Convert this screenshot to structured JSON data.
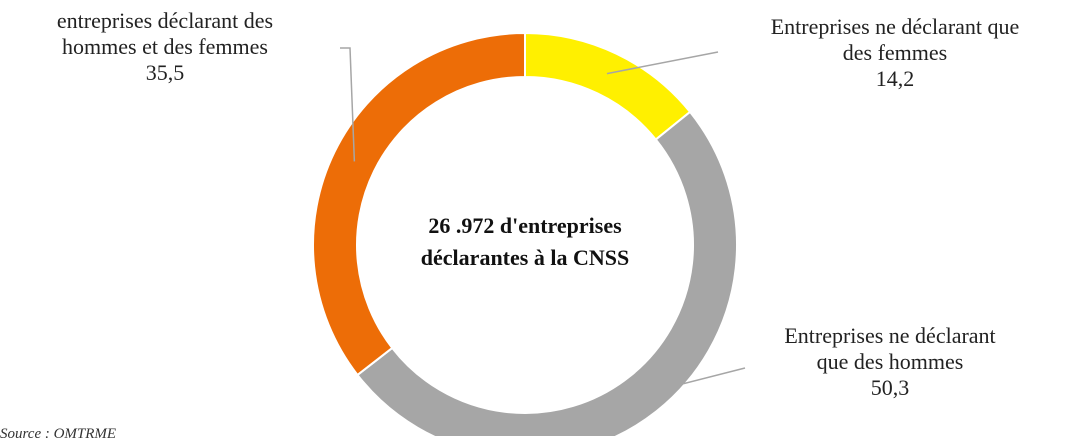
{
  "chart_data": {
    "type": "pie",
    "variant": "donut",
    "center_text": [
      "26 .972 d'entreprises",
      "déclarantes à la CNSS"
    ],
    "slices": [
      {
        "label": [
          "Entreprises ne déclarant que",
          "des femmes"
        ],
        "value": 14.2,
        "value_label": "14,2",
        "color": "#FFF000"
      },
      {
        "label": [
          "Entreprises ne déclarant",
          "que des hommes"
        ],
        "value": 50.3,
        "value_label": "50,3",
        "color": "#A6A6A6"
      },
      {
        "label": [
          "entreprises déclarant des",
          "hommes et des femmes"
        ],
        "value": 35.5,
        "value_label": "35,5",
        "color": "#ED6D07"
      }
    ],
    "legend": "none"
  },
  "source": "Source : OMTRME"
}
